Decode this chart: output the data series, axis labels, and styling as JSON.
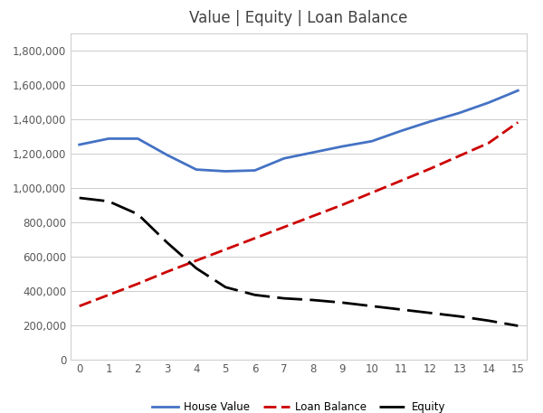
{
  "title": "Value | Equity | Loan Balance",
  "x": [
    0,
    1,
    2,
    3,
    4,
    5,
    6,
    7,
    8,
    9,
    10,
    11,
    12,
    13,
    14,
    15
  ],
  "house_value": [
    1250000,
    1285000,
    1285000,
    1190000,
    1105000,
    1095000,
    1100000,
    1170000,
    1205000,
    1240000,
    1270000,
    1330000,
    1385000,
    1435000,
    1495000,
    1565000
  ],
  "loan_balance": [
    310000,
    375000,
    440000,
    510000,
    575000,
    640000,
    705000,
    770000,
    835000,
    900000,
    970000,
    1040000,
    1110000,
    1185000,
    1260000,
    1380000
  ],
  "equity": [
    940000,
    920000,
    845000,
    680000,
    530000,
    420000,
    375000,
    355000,
    345000,
    330000,
    310000,
    290000,
    270000,
    250000,
    225000,
    195000
  ],
  "house_value_color": "#4472C4",
  "loan_balance_color": "#CC0000",
  "equity_color": "#000000",
  "ylim": [
    0,
    1900000
  ],
  "ytick_step": 200000,
  "background_color": "#FFFFFF",
  "grid_color": "#CCCCCC",
  "legend_labels": [
    "House Value",
    "Loan Balance",
    "Equity"
  ]
}
